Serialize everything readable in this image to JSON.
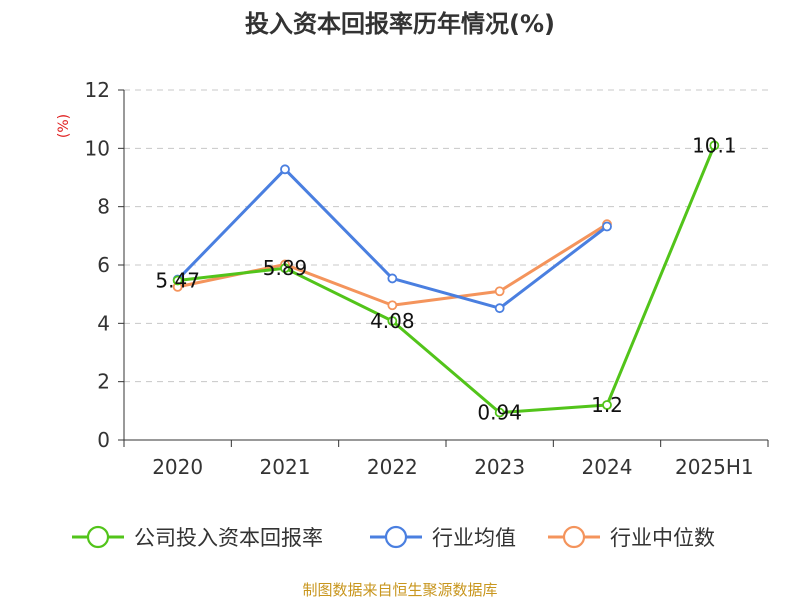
{
  "chart_data": {
    "type": "line",
    "title": "投入资本回报率历年情况(%)",
    "ylabel": "(%)",
    "categories": [
      "2020",
      "2021",
      "2022",
      "2023",
      "2024",
      "2025H1"
    ],
    "ylim": [
      0,
      12
    ],
    "yticks": [
      0,
      2,
      4,
      6,
      8,
      10,
      12
    ],
    "grid": true,
    "legend_position": "bottom",
    "series": [
      {
        "name": "公司投入资本回报率",
        "color": "#52c41a",
        "values": [
          5.47,
          5.89,
          4.08,
          0.94,
          1.2,
          10.1
        ],
        "labels": [
          "5.47",
          "5.89",
          "4.08",
          "0.94",
          "1.2",
          "10.1"
        ]
      },
      {
        "name": "行业均值",
        "color": "#4a7fe0",
        "values": [
          5.5,
          9.28,
          5.54,
          4.52,
          7.32,
          null
        ]
      },
      {
        "name": "行业中位数",
        "color": "#f4945c",
        "values": [
          5.25,
          6.02,
          4.62,
          5.1,
          7.4,
          null
        ]
      }
    ],
    "source": "制图数据来自恒生聚源数据库",
    "source_color": "#c8961e",
    "ylabel_color": "#e02020"
  }
}
